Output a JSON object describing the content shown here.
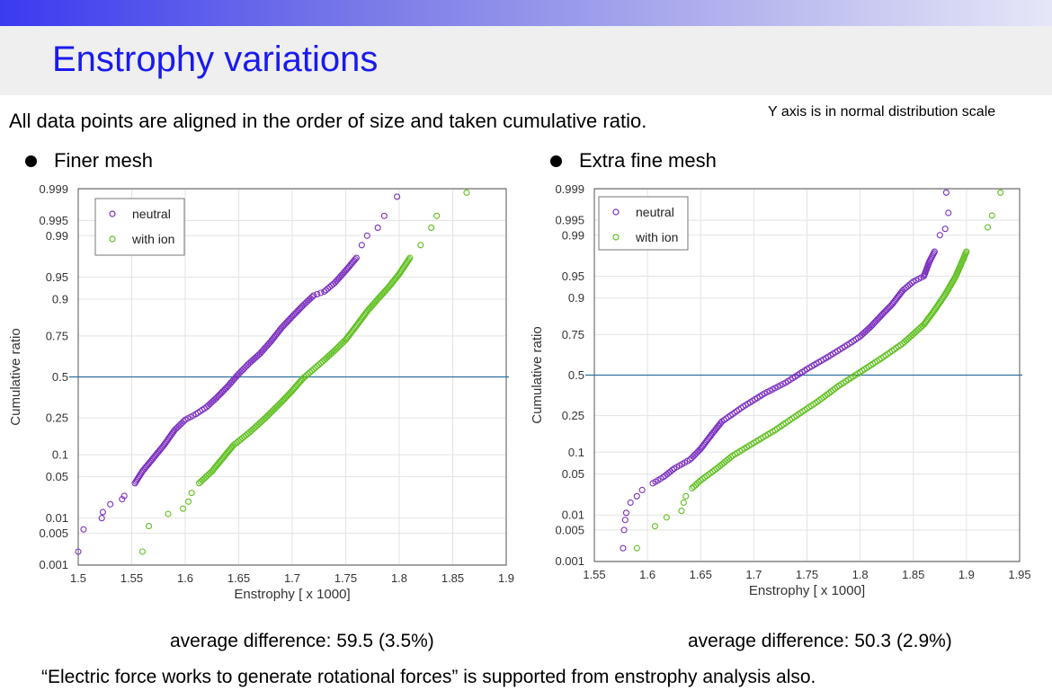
{
  "slide": {
    "title": "Enstrophy variations",
    "intro": "All data points are aligned in the order of size and taken cumulative ratio.",
    "note": "Y axis is in normal distribution scale",
    "left_heading": "Finer mesh",
    "right_heading": "Extra fine mesh",
    "left_stat": "average difference: 59.5  (3.5%)",
    "right_stat": "average difference: 50.3  (2.9%)",
    "footer": "“Electric force works to generate rotational forces” is supported from enstrophy analysis also."
  },
  "chart_data": [
    {
      "type": "scatter",
      "title": "",
      "xlabel": "Enstrophy [ x 1000]",
      "ylabel": "Cumulative ratio",
      "xlim": [
        1.5,
        1.9
      ],
      "xticks": [
        "1.5",
        "1.55",
        "1.6",
        "1.65",
        "1.7",
        "1.75",
        "1.8",
        "1.85",
        "1.9"
      ],
      "yscale": "normal-probability",
      "yticks": [
        "0.001",
        "0.005",
        "0.01",
        "0.05",
        "0.1",
        "0.25",
        "0.5",
        "0.75",
        "0.9",
        "0.95",
        "0.99",
        "0.995",
        "0.999"
      ],
      "grid": true,
      "legend": "top-left",
      "reference_line": 0.5,
      "series": [
        {
          "name": "neutral",
          "color": "#7b2fbe",
          "points": [
            [
              1.5,
              0.002
            ],
            [
              1.505,
              0.006
            ],
            [
              1.522,
              0.01
            ],
            [
              1.523,
              0.013
            ],
            [
              1.53,
              0.018
            ],
            [
              1.541,
              0.022
            ],
            [
              1.543,
              0.025
            ],
            [
              1.553,
              0.04
            ],
            [
              1.56,
              0.06
            ],
            [
              1.57,
              0.09
            ],
            [
              1.58,
              0.13
            ],
            [
              1.59,
              0.19
            ],
            [
              1.6,
              0.24
            ],
            [
              1.61,
              0.27
            ],
            [
              1.62,
              0.31
            ],
            [
              1.63,
              0.37
            ],
            [
              1.64,
              0.44
            ],
            [
              1.65,
              0.52
            ],
            [
              1.66,
              0.59
            ],
            [
              1.67,
              0.65
            ],
            [
              1.68,
              0.72
            ],
            [
              1.69,
              0.79
            ],
            [
              1.7,
              0.84
            ],
            [
              1.71,
              0.88
            ],
            [
              1.72,
              0.91
            ],
            [
              1.73,
              0.92
            ],
            [
              1.74,
              0.94
            ],
            [
              1.75,
              0.96
            ],
            [
              1.76,
              0.975
            ],
            [
              1.765,
              0.985
            ],
            [
              1.77,
              0.99
            ],
            [
              1.78,
              0.993
            ],
            [
              1.786,
              0.996
            ],
            [
              1.798,
              0.9985
            ]
          ]
        },
        {
          "name": "with ion",
          "color": "#5fbf1e",
          "points": [
            [
              1.56,
              0.002
            ],
            [
              1.566,
              0.007
            ],
            [
              1.584,
              0.012
            ],
            [
              1.598,
              0.015
            ],
            [
              1.603,
              0.02
            ],
            [
              1.606,
              0.028
            ],
            [
              1.613,
              0.04
            ],
            [
              1.625,
              0.06
            ],
            [
              1.635,
              0.09
            ],
            [
              1.645,
              0.13
            ],
            [
              1.66,
              0.18
            ],
            [
              1.675,
              0.25
            ],
            [
              1.69,
              0.34
            ],
            [
              1.7,
              0.41
            ],
            [
              1.71,
              0.49
            ],
            [
              1.72,
              0.55
            ],
            [
              1.73,
              0.61
            ],
            [
              1.74,
              0.67
            ],
            [
              1.75,
              0.73
            ],
            [
              1.76,
              0.8
            ],
            [
              1.77,
              0.86
            ],
            [
              1.78,
              0.9
            ],
            [
              1.79,
              0.93
            ],
            [
              1.8,
              0.955
            ],
            [
              1.81,
              0.975
            ],
            [
              1.82,
              0.985
            ],
            [
              1.83,
              0.993
            ],
            [
              1.835,
              0.996
            ],
            [
              1.863,
              0.9988
            ]
          ]
        }
      ]
    },
    {
      "type": "scatter",
      "title": "",
      "xlabel": "Enstrophy [ x 1000]",
      "ylabel": "Cumulative ratio",
      "xlim": [
        1.55,
        1.95
      ],
      "xticks": [
        "1.55",
        "1.6",
        "1.65",
        "1.7",
        "1.75",
        "1.8",
        "1.85",
        "1.9",
        "1.95"
      ],
      "yscale": "normal-probability",
      "yticks": [
        "0.001",
        "0.005",
        "0.01",
        "0.05",
        "0.1",
        "0.25",
        "0.5",
        "0.75",
        "0.9",
        "0.95",
        "0.99",
        "0.995",
        "0.999"
      ],
      "grid": true,
      "legend": "top-left",
      "reference_line": 0.5,
      "series": [
        {
          "name": "neutral",
          "color": "#7b2fbe",
          "points": [
            [
              1.577,
              0.002
            ],
            [
              1.578,
              0.005
            ],
            [
              1.579,
              0.008
            ],
            [
              1.58,
              0.011
            ],
            [
              1.584,
              0.017
            ],
            [
              1.59,
              0.022
            ],
            [
              1.595,
              0.028
            ],
            [
              1.605,
              0.036
            ],
            [
              1.615,
              0.045
            ],
            [
              1.625,
              0.06
            ],
            [
              1.64,
              0.08
            ],
            [
              1.65,
              0.11
            ],
            [
              1.66,
              0.16
            ],
            [
              1.67,
              0.22
            ],
            [
              1.69,
              0.3
            ],
            [
              1.71,
              0.38
            ],
            [
              1.73,
              0.45
            ],
            [
              1.75,
              0.54
            ],
            [
              1.77,
              0.62
            ],
            [
              1.79,
              0.7
            ],
            [
              1.8,
              0.74
            ],
            [
              1.81,
              0.79
            ],
            [
              1.82,
              0.84
            ],
            [
              1.83,
              0.88
            ],
            [
              1.84,
              0.92
            ],
            [
              1.85,
              0.94
            ],
            [
              1.86,
              0.95
            ],
            [
              1.865,
              0.97
            ],
            [
              1.87,
              0.98
            ],
            [
              1.875,
              0.99
            ],
            [
              1.88,
              0.9925
            ],
            [
              1.883,
              0.9965
            ],
            [
              1.881,
              0.9988
            ]
          ]
        },
        {
          "name": "with ion",
          "color": "#5fbf1e",
          "points": [
            [
              1.59,
              0.002
            ],
            [
              1.607,
              0.006
            ],
            [
              1.618,
              0.009
            ],
            [
              1.632,
              0.012
            ],
            [
              1.634,
              0.017
            ],
            [
              1.636,
              0.022
            ],
            [
              1.642,
              0.03
            ],
            [
              1.65,
              0.04
            ],
            [
              1.665,
              0.06
            ],
            [
              1.68,
              0.09
            ],
            [
              1.7,
              0.13
            ],
            [
              1.72,
              0.18
            ],
            [
              1.74,
              0.25
            ],
            [
              1.76,
              0.33
            ],
            [
              1.78,
              0.43
            ],
            [
              1.8,
              0.52
            ],
            [
              1.82,
              0.61
            ],
            [
              1.84,
              0.7
            ],
            [
              1.86,
              0.8
            ],
            [
              1.87,
              0.86
            ],
            [
              1.88,
              0.91
            ],
            [
              1.89,
              0.95
            ],
            [
              1.9,
              0.98
            ],
            [
              1.92,
              0.993
            ],
            [
              1.924,
              0.996
            ],
            [
              1.932,
              0.9988
            ]
          ]
        }
      ]
    }
  ]
}
